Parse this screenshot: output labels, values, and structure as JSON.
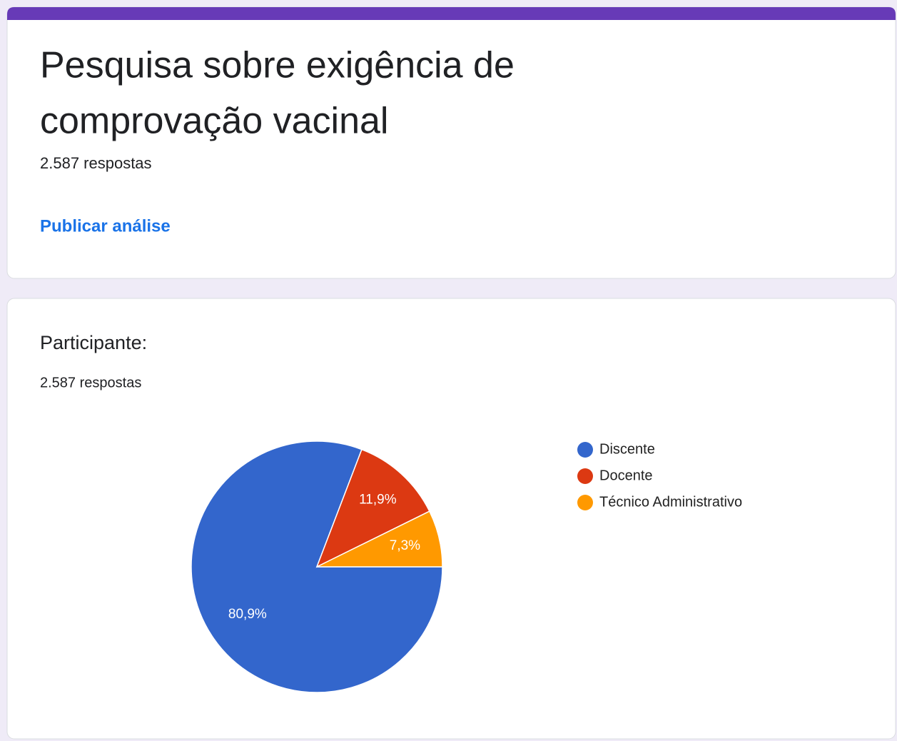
{
  "header": {
    "title_lines": [
      "Pesquisa sobre exigência de",
      "comprovação vacinal"
    ],
    "responses": "2.587 respostas",
    "publish_link": "Publicar análise"
  },
  "chart_data": {
    "type": "pie",
    "title": "Participante:",
    "subtitle": "2.587 respostas",
    "categories": [
      "Discente",
      "Docente",
      "Técnico Administrativo"
    ],
    "values": [
      80.9,
      11.9,
      7.3
    ],
    "value_labels": [
      "80,9%",
      "11,9%",
      "7,3%"
    ],
    "colors": [
      "#3366cc",
      "#dc3912",
      "#ff9900"
    ],
    "legend": "right"
  }
}
